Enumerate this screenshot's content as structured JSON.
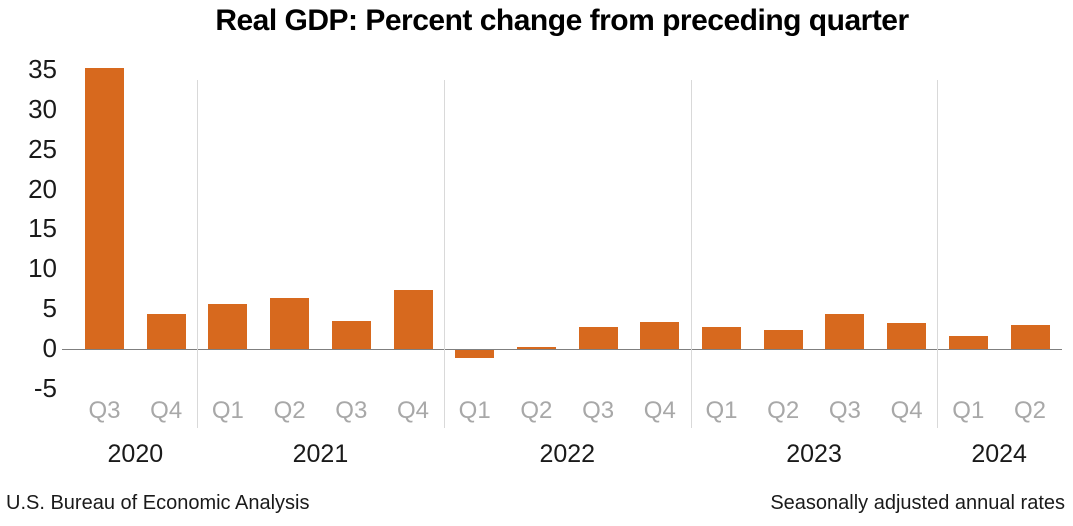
{
  "title": "Real GDP: Percent change from preceding quarter",
  "footer": {
    "left": "U.S. Bureau of Economic Analysis",
    "right": "Seasonally adjusted annual rates"
  },
  "colors": {
    "bar": "#d7691e",
    "zero_line": "#7f7f7f",
    "year_separator": "#d9d9d9",
    "quarter_label": "#a8a8a8",
    "year_label": "#1a1a1a",
    "ytick_label": "#1a1a1a",
    "title_text": "#000000",
    "footer_text": "#1a1a1a"
  },
  "chart_data": {
    "type": "bar",
    "title": "Real GDP: Percent change from preceding quarter",
    "xlabel": "",
    "ylabel": "",
    "categories": [
      "Q3",
      "Q4",
      "Q1",
      "Q2",
      "Q3",
      "Q4",
      "Q1",
      "Q2",
      "Q3",
      "Q4",
      "Q1",
      "Q2",
      "Q3",
      "Q4",
      "Q1",
      "Q2"
    ],
    "values": [
      35.2,
      4.4,
      5.6,
      6.4,
      3.5,
      7.4,
      -1.0,
      0.3,
      2.7,
      3.4,
      2.8,
      2.4,
      4.4,
      3.2,
      1.6,
      3.0
    ],
    "year_groups": [
      {
        "label": "2020",
        "quarters": 2
      },
      {
        "label": "2021",
        "quarters": 4
      },
      {
        "label": "2022",
        "quarters": 4
      },
      {
        "label": "2023",
        "quarters": 4
      },
      {
        "label": "2024",
        "quarters": 2
      }
    ],
    "yticks": [
      35,
      30,
      25,
      20,
      15,
      10,
      5,
      0,
      -5
    ],
    "ylim": [
      -5,
      37
    ],
    "grid": "vertical year separators only, horizontal axis line at zero",
    "legend": "none",
    "notes": {
      "source": "U.S. Bureau of Economic Analysis",
      "adjustment": "Seasonally adjusted annual rates"
    }
  }
}
